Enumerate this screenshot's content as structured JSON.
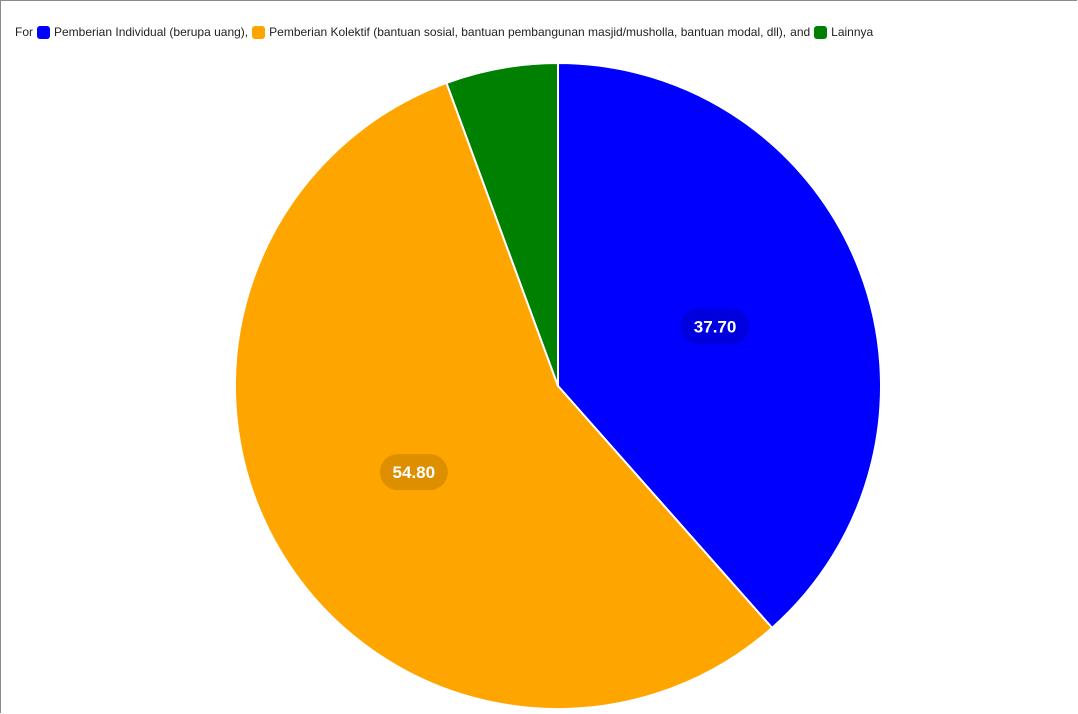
{
  "legend": {
    "prefix": "For",
    "connector": "and",
    "separator": ","
  },
  "chart_data": {
    "type": "pie",
    "title": "",
    "categories": [
      "Pemberian Individual (berupa uang)",
      "Pemberian Kolektif (bantuan sosial, bantuan pembangunan masjid/musholla, bantuan modal, dll)",
      "Lainnya"
    ],
    "values": [
      37.7,
      54.8,
      5.5
    ],
    "value_labels": [
      "37.70",
      "54.80",
      ""
    ],
    "colors": [
      "#0000ff",
      "#ffa500",
      "#008000"
    ],
    "slice_border_color": "#ffffff",
    "legend_position": "top-left"
  }
}
